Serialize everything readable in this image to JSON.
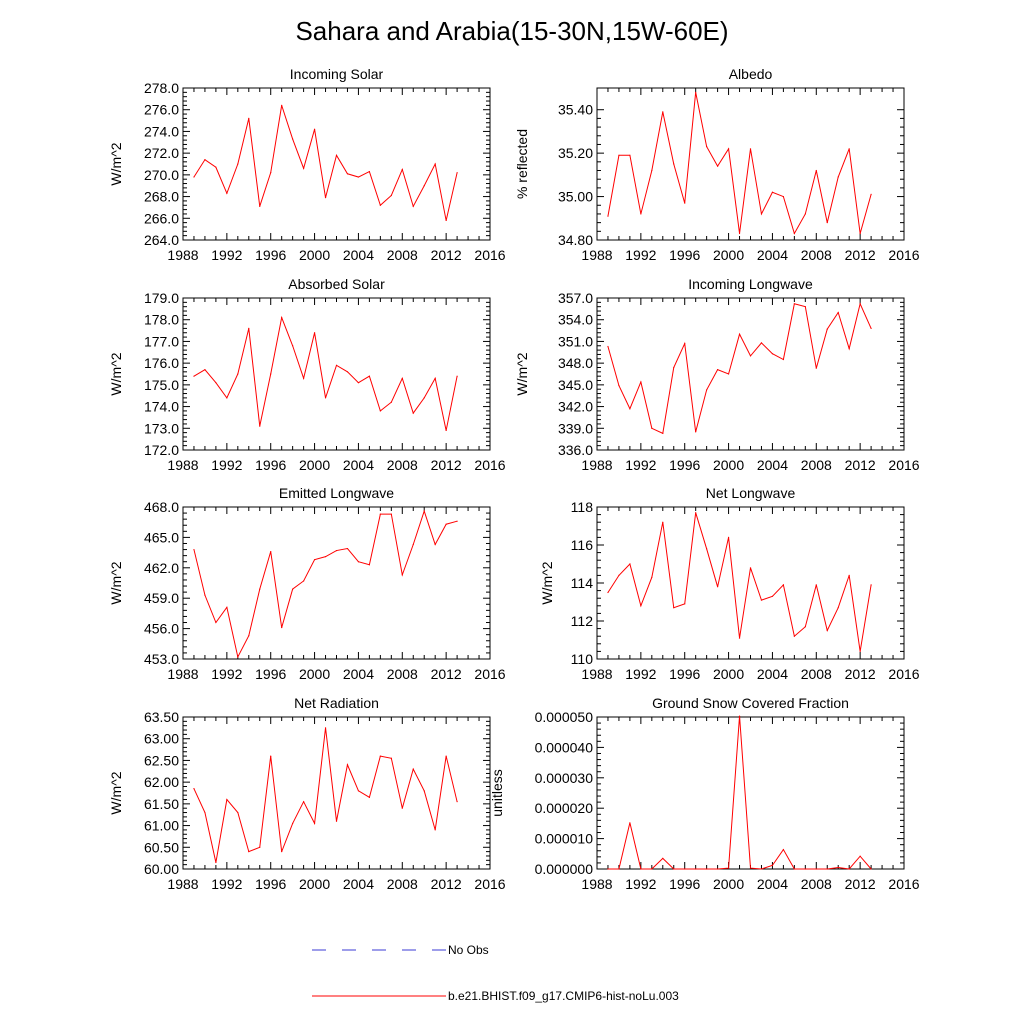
{
  "title": "Sahara and Arabia(15-30N,15W-60E)",
  "legend": {
    "entries": [
      {
        "label": "No Obs",
        "color": "#3b3bd6",
        "dash": true
      },
      {
        "label": "b.e21.BHIST.f09_g17.CMIP6-hist-noLu.003",
        "color": "#ff0000",
        "dash": false
      }
    ]
  },
  "chart_data": [
    {
      "type": "line",
      "title": "Incoming Solar",
      "ylabel": "W/m^2",
      "xlim": [
        1988,
        2016
      ],
      "xticks": [
        "1988",
        "1992",
        "1996",
        "2000",
        "2004",
        "2008",
        "2012",
        "2016"
      ],
      "ylim": [
        264.0,
        278.0
      ],
      "yticks": [
        "264.0",
        "266.0",
        "268.0",
        "270.0",
        "272.0",
        "274.0",
        "276.0",
        "278.0"
      ],
      "x": [
        1989,
        1990,
        1991,
        1992,
        1993,
        1994,
        1995,
        1996,
        1997,
        1998,
        1999,
        2000,
        2001,
        2002,
        2003,
        2004,
        2005,
        2006,
        2007,
        2008,
        2009,
        2010,
        2011,
        2012,
        2013
      ],
      "series": [
        {
          "color": "#ff0000",
          "values": [
            269.8,
            271.4,
            270.7,
            268.3,
            271.0,
            275.2,
            267.1,
            270.2,
            276.4,
            273.3,
            270.6,
            274.2,
            267.9,
            271.8,
            270.1,
            269.8,
            270.3,
            267.2,
            268.1,
            270.5,
            267.1,
            269.0,
            271.0,
            265.8,
            270.2
          ]
        }
      ]
    },
    {
      "type": "line",
      "title": "Albedo",
      "ylabel": "% reflected",
      "xlim": [
        1988,
        2016
      ],
      "xticks": [
        "1988",
        "1992",
        "1996",
        "2000",
        "2004",
        "2008",
        "2012",
        "2016"
      ],
      "ylim": [
        34.8,
        35.5
      ],
      "yticks": [
        "34.80",
        "35.00",
        "35.20",
        "35.40"
      ],
      "ytick_values": [
        34.8,
        35.0,
        35.2,
        35.4
      ],
      "x": [
        1989,
        1990,
        1991,
        1992,
        1993,
        1994,
        1995,
        1996,
        1997,
        1998,
        1999,
        2000,
        2001,
        2002,
        2003,
        2004,
        2005,
        2006,
        2007,
        2008,
        2009,
        2010,
        2011,
        2012,
        2013
      ],
      "series": [
        {
          "color": "#ff0000",
          "values": [
            34.91,
            35.19,
            35.19,
            34.92,
            35.12,
            35.39,
            35.15,
            34.97,
            35.48,
            35.23,
            35.14,
            35.22,
            34.83,
            35.22,
            34.92,
            35.02,
            35.0,
            34.83,
            34.92,
            35.12,
            34.88,
            35.09,
            35.22,
            34.83,
            35.01
          ]
        }
      ]
    },
    {
      "type": "line",
      "title": "Absorbed Solar",
      "ylabel": "W/m^2",
      "xlim": [
        1988,
        2016
      ],
      "xticks": [
        "1988",
        "1992",
        "1996",
        "2000",
        "2004",
        "2008",
        "2012",
        "2016"
      ],
      "ylim": [
        172.0,
        179.0
      ],
      "yticks": [
        "172.0",
        "173.0",
        "174.0",
        "175.0",
        "176.0",
        "177.0",
        "178.0",
        "179.0"
      ],
      "x": [
        1989,
        1990,
        1991,
        1992,
        1993,
        1994,
        1995,
        1996,
        1997,
        1998,
        1999,
        2000,
        2001,
        2002,
        2003,
        2004,
        2005,
        2006,
        2007,
        2008,
        2009,
        2010,
        2011,
        2012,
        2013
      ],
      "series": [
        {
          "color": "#ff0000",
          "values": [
            175.4,
            175.7,
            175.1,
            174.4,
            175.5,
            177.6,
            173.1,
            175.5,
            178.1,
            176.8,
            175.3,
            177.4,
            174.4,
            175.9,
            175.6,
            175.1,
            175.4,
            173.8,
            174.2,
            175.3,
            173.7,
            174.4,
            175.3,
            172.9,
            175.4
          ]
        }
      ]
    },
    {
      "type": "line",
      "title": "Incoming Longwave",
      "ylabel": "W/m^2",
      "xlim": [
        1988,
        2016
      ],
      "xticks": [
        "1988",
        "1992",
        "1996",
        "2000",
        "2004",
        "2008",
        "2012",
        "2016"
      ],
      "ylim": [
        336.0,
        357.0
      ],
      "yticks": [
        "336.0",
        "339.0",
        "342.0",
        "345.0",
        "348.0",
        "351.0",
        "354.0",
        "357.0"
      ],
      "x": [
        1989,
        1990,
        1991,
        1992,
        1993,
        1994,
        1995,
        1996,
        1997,
        1998,
        1999,
        2000,
        2001,
        2002,
        2003,
        2004,
        2005,
        2006,
        2007,
        2008,
        2009,
        2010,
        2011,
        2012,
        2013
      ],
      "series": [
        {
          "color": "#ff0000",
          "values": [
            350.3,
            344.9,
            341.7,
            345.4,
            339.0,
            338.3,
            347.4,
            350.7,
            338.5,
            344.3,
            347.1,
            346.5,
            352.0,
            349.0,
            350.8,
            349.3,
            348.5,
            356.2,
            355.8,
            347.3,
            352.7,
            355.0,
            350.0,
            356.2,
            352.8
          ]
        }
      ]
    },
    {
      "type": "line",
      "title": "Emitted Longwave",
      "ylabel": "W/m^2",
      "xlim": [
        1988,
        2016
      ],
      "xticks": [
        "1988",
        "1992",
        "1996",
        "2000",
        "2004",
        "2008",
        "2012",
        "2016"
      ],
      "ylim": [
        453.0,
        468.0
      ],
      "yticks": [
        "453.0",
        "456.0",
        "459.0",
        "462.0",
        "465.0",
        "468.0"
      ],
      "x": [
        1989,
        1990,
        1991,
        1992,
        1993,
        1994,
        1995,
        1996,
        1997,
        1998,
        1999,
        2000,
        2001,
        2002,
        2003,
        2004,
        2005,
        2006,
        2007,
        2008,
        2009,
        2010,
        2011,
        2012,
        2013
      ],
      "series": [
        {
          "color": "#ff0000",
          "values": [
            463.8,
            459.3,
            456.6,
            458.1,
            453.2,
            455.3,
            459.9,
            463.6,
            456.1,
            459.9,
            460.7,
            462.8,
            463.1,
            463.7,
            463.9,
            462.6,
            462.3,
            467.3,
            467.3,
            461.3,
            464.3,
            467.6,
            464.3,
            466.3,
            466.6
          ]
        }
      ]
    },
    {
      "type": "line",
      "title": "Net Longwave",
      "ylabel": "W/m^2",
      "xlim": [
        1988,
        2016
      ],
      "xticks": [
        "1988",
        "1992",
        "1996",
        "2000",
        "2004",
        "2008",
        "2012",
        "2016"
      ],
      "ylim": [
        110,
        118
      ],
      "yticks": [
        "110",
        "112",
        "114",
        "116",
        "118"
      ],
      "x": [
        1989,
        1990,
        1991,
        1992,
        1993,
        1994,
        1995,
        1996,
        1997,
        1998,
        1999,
        2000,
        2001,
        2002,
        2003,
        2004,
        2005,
        2006,
        2007,
        2008,
        2009,
        2010,
        2011,
        2012,
        2013
      ],
      "series": [
        {
          "color": "#ff0000",
          "values": [
            113.5,
            114.4,
            115.0,
            112.8,
            114.3,
            117.2,
            112.7,
            112.9,
            117.7,
            115.8,
            113.8,
            116.4,
            111.1,
            114.8,
            113.1,
            113.3,
            113.9,
            111.2,
            111.7,
            113.9,
            111.5,
            112.7,
            114.4,
            110.4,
            113.9
          ]
        }
      ]
    },
    {
      "type": "line",
      "title": "Net Radiation",
      "ylabel": "W/m^2",
      "xlim": [
        1988,
        2016
      ],
      "xticks": [
        "1988",
        "1992",
        "1996",
        "2000",
        "2004",
        "2008",
        "2012",
        "2016"
      ],
      "ylim": [
        60.0,
        63.5
      ],
      "yticks": [
        "60.00",
        "60.50",
        "61.00",
        "61.50",
        "62.00",
        "62.50",
        "63.00",
        "63.50"
      ],
      "x": [
        1989,
        1990,
        1991,
        1992,
        1993,
        1994,
        1995,
        1996,
        1997,
        1998,
        1999,
        2000,
        2001,
        2002,
        2003,
        2004,
        2005,
        2006,
        2007,
        2008,
        2009,
        2010,
        2011,
        2012,
        2013
      ],
      "series": [
        {
          "color": "#ff0000",
          "values": [
            61.85,
            61.3,
            60.15,
            61.6,
            61.3,
            60.4,
            60.5,
            62.6,
            60.4,
            61.05,
            61.55,
            61.05,
            63.25,
            61.1,
            62.4,
            61.8,
            61.65,
            62.6,
            62.55,
            61.4,
            62.3,
            61.8,
            60.9,
            62.6,
            61.55
          ]
        }
      ]
    },
    {
      "type": "line",
      "title": "Ground Snow Covered Fraction",
      "ylabel": "unitless",
      "xlim": [
        1988,
        2016
      ],
      "xticks": [
        "1988",
        "1992",
        "1996",
        "2000",
        "2004",
        "2008",
        "2012",
        "2016"
      ],
      "ylim": [
        0.0,
        5e-05
      ],
      "yticks": [
        "0.000000",
        "0.000010",
        "0.000020",
        "0.000030",
        "0.000040",
        "0.000050"
      ],
      "x": [
        1989,
        1990,
        1991,
        1992,
        1993,
        1994,
        1995,
        1996,
        1997,
        1998,
        1999,
        2000,
        2001,
        2002,
        2003,
        2004,
        2005,
        2006,
        2007,
        2008,
        2009,
        2010,
        2011,
        2012,
        2013
      ],
      "series": [
        {
          "color": "#ff0000",
          "values": [
            0.0,
            0.0,
            1.52e-05,
            0.0,
            0.0,
            3.5e-06,
            0.0,
            0.0,
            0.0,
            0.0,
            0.0,
            3e-07,
            5.03e-05,
            3e-07,
            0.0,
            1.2e-06,
            6.4e-06,
            0.0,
            0.0,
            0.0,
            0.0,
            5e-07,
            0.0,
            4.2e-06,
            0.0
          ]
        }
      ]
    }
  ]
}
